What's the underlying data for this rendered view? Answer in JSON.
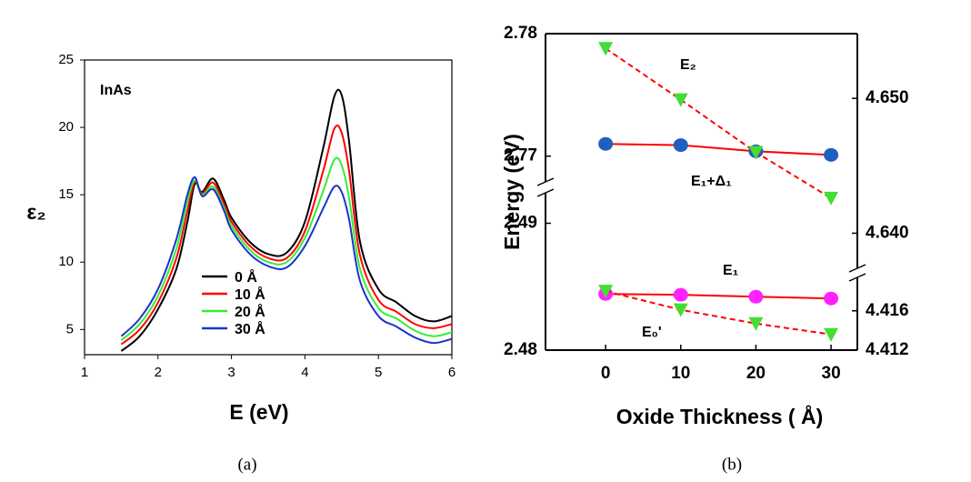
{
  "chart_data": [
    {
      "type": "line",
      "xlabel": "E (eV)",
      "ylabel": "ε₂",
      "annotation": "InAs",
      "caption": "(a)",
      "x": [
        1.5,
        1.75,
        2,
        2.25,
        2.4,
        2.5,
        2.6,
        2.75,
        2.9,
        3,
        3.25,
        3.5,
        3.75,
        4,
        4.25,
        4.4,
        4.5,
        4.6,
        4.75,
        5,
        5.25,
        5.5,
        5.75,
        6
      ],
      "series": [
        {
          "name": "0 Å",
          "color": "#000000",
          "values": [
            3.4,
            4.5,
            6.5,
            9.5,
            13,
            15.8,
            15.2,
            16.2,
            14.6,
            13.3,
            11.5,
            10.6,
            10.7,
            13,
            18.5,
            22.3,
            22.4,
            19,
            11.5,
            8,
            7,
            6,
            5.6,
            6.0
          ]
        },
        {
          "name": "10 Å",
          "color": "#ff0000",
          "values": [
            3.9,
            5.0,
            7.0,
            10.3,
            13.8,
            16.0,
            15.1,
            15.9,
            14.3,
            13.0,
            11.2,
            10.3,
            10.3,
            12.3,
            16.8,
            19.9,
            19.6,
            16.8,
            10.5,
            7.2,
            6.3,
            5.4,
            5.1,
            5.4
          ]
        },
        {
          "name": "20 Å",
          "color": "#33ee33",
          "values": [
            4.2,
            5.4,
            7.5,
            11,
            14.5,
            16.1,
            15.0,
            15.6,
            14.0,
            12.7,
            10.9,
            10.0,
            10.0,
            11.8,
            15.3,
            17.6,
            17.2,
            14.8,
            9.5,
            6.6,
            5.8,
            4.9,
            4.5,
            4.8
          ]
        },
        {
          "name": "30 Å",
          "color": "#1a33cc",
          "values": [
            4.5,
            5.8,
            8.0,
            11.7,
            15,
            16.3,
            14.9,
            15.4,
            13.8,
            12.4,
            10.6,
            9.7,
            9.6,
            11.2,
            14.0,
            15.6,
            15.2,
            13.2,
            8.6,
            6.0,
            5.2,
            4.4,
            4.0,
            4.3
          ]
        }
      ],
      "xlim": [
        1,
        6
      ],
      "xticks": [
        1,
        2,
        3,
        4,
        5,
        6
      ],
      "ylim": [
        3.13,
        25
      ],
      "yticks": [
        5,
        10,
        15,
        20,
        25
      ]
    },
    {
      "type": "line",
      "xlabel": "Oxide Thickness ( Å)",
      "ylabel": "Energy (eV)",
      "caption": "(b)",
      "x": [
        0,
        10,
        20,
        30
      ],
      "xlim": [
        -8,
        33.5
      ],
      "xticks": [
        0,
        10,
        20,
        30
      ],
      "y_axes": [
        {
          "side": "left",
          "ylim": [
            2.7679,
            2.78
          ],
          "yticks": [
            2.77,
            2.78
          ]
        },
        {
          "side": "left",
          "ylim": [
            2.48,
            2.4924
          ],
          "yticks": [
            2.48,
            2.49
          ]
        },
        {
          "side": "right",
          "ylim": [
            4.6374,
            4.6548
          ],
          "yticks": [
            {
              "value": 4.64,
              "label": "4.640"
            },
            {
              "value": 4.65,
              "label": "4.650"
            }
          ]
        },
        {
          "side": "right",
          "ylim": [
            4.412,
            4.4194
          ],
          "yticks": [
            4.412,
            4.416
          ]
        }
      ],
      "series": [
        {
          "name": "E₁+Δ₁",
          "axis": 0,
          "marker": "circle",
          "color": "#1f5fbf",
          "line_color": "#ff0000",
          "line_style": "solid",
          "values": [
            2.771,
            2.7709,
            2.7704,
            2.7701
          ]
        },
        {
          "name": "E₁",
          "axis": 1,
          "marker": "circle",
          "color": "#ff22ff",
          "line_color": "#ff0000",
          "line_style": "solid",
          "values": [
            2.48443,
            2.48436,
            2.48421,
            2.48407
          ]
        },
        {
          "name": "E₂",
          "axis": 2,
          "marker": "triangle",
          "color": "#44dd33",
          "line_color": "#ff0000",
          "line_style": "dashed",
          "values": [
            4.6537,
            4.6499,
            4.646,
            4.6426
          ]
        },
        {
          "name": "E₀'",
          "axis": 3,
          "marker": "triangle",
          "color": "#44dd33",
          "line_color": "#ff0000",
          "line_style": "dashed",
          "values": [
            4.418,
            4.4161,
            4.4147,
            4.4136
          ]
        }
      ]
    }
  ]
}
